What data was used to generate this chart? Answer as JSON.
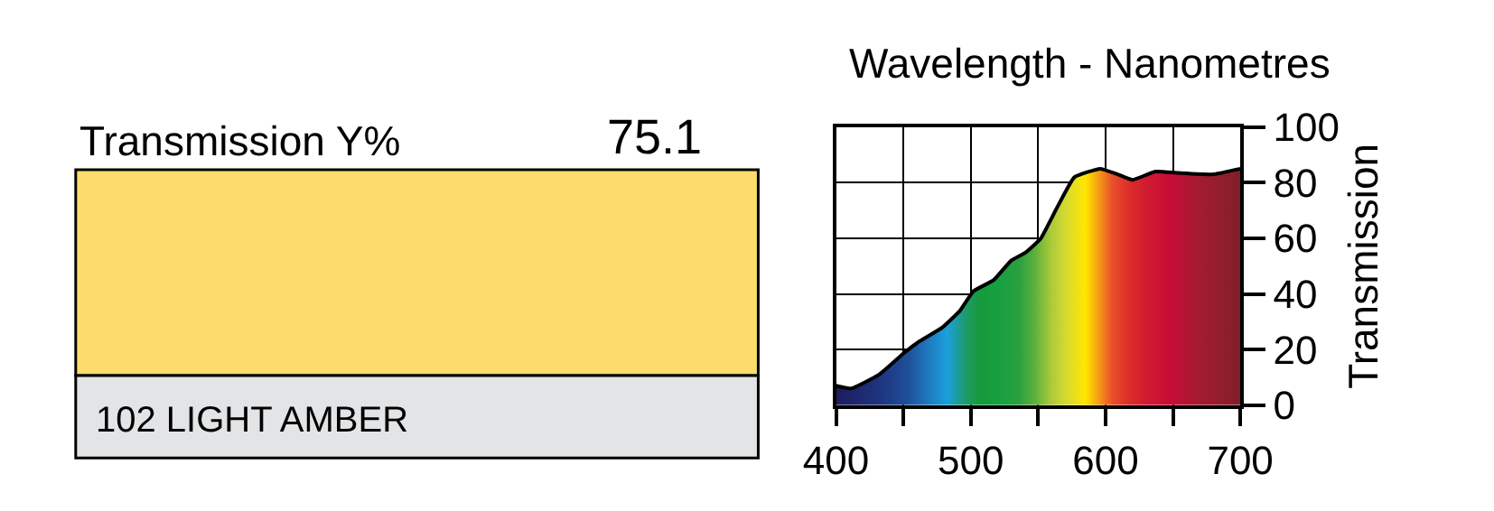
{
  "chart_data": [
    {
      "type": "other",
      "title": "Transmission Y%",
      "subtitle": "75.1",
      "annotations": [
        "102 LIGHT AMBER"
      ],
      "color": "#fcdc6b"
    },
    {
      "type": "area",
      "title": "Wavelength - Nanometres",
      "ylabel": "Transmission",
      "x": [
        400,
        411,
        432,
        451,
        462,
        479,
        492,
        502,
        517,
        530,
        541,
        552,
        564,
        577,
        596,
        609,
        620,
        637,
        654,
        680,
        700
      ],
      "series": [
        {
          "color": "#000000",
          "values": [
            7,
            6,
            11,
            19,
            23,
            28,
            34,
            41,
            45,
            52,
            55,
            60,
            71,
            82,
            85,
            83,
            81,
            84,
            83.5,
            83,
            85
          ],
          "colors": [
            "#1c1c5c",
            "#1e2468",
            "#1f3580",
            "#1d4f98",
            "#1f6fb5",
            "#1aa0dc",
            "#1f9a6a",
            "#159a3c",
            "#18a040",
            "#2ca040",
            "#5cb03c",
            "#a8c83a",
            "#d8dc30",
            "#ffe600",
            "#e8502a",
            "#dc2a2a",
            "#d01c30",
            "#c80c38",
            "#a81a30",
            "#8a1e2c",
            "#6a2020"
          ]
        }
      ],
      "xlim": [
        400,
        700
      ],
      "xticks": [
        400,
        {
          "value": 450,
          "label": null
        },
        500,
        {
          "value": 550,
          "label": null
        },
        600,
        {
          "value": 650,
          "label": null
        },
        700
      ],
      "ylim": [
        0,
        100
      ],
      "yticks": [
        0,
        20,
        40,
        60,
        80,
        100
      ],
      "grid": true
    }
  ]
}
